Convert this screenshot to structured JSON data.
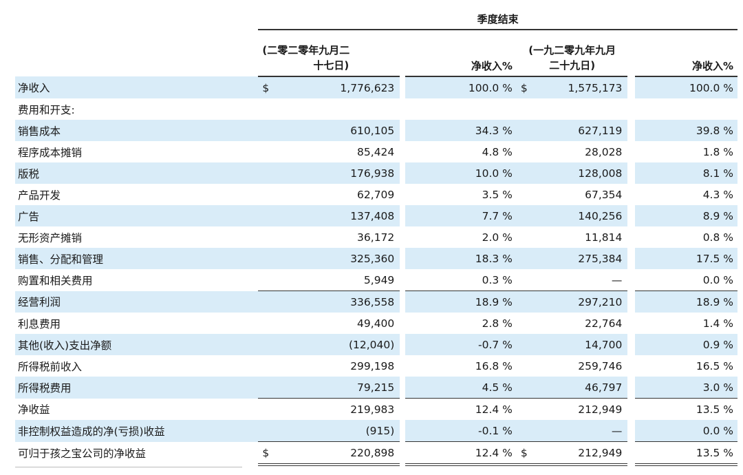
{
  "header": {
    "period_title": "季度结束",
    "col1_date_line1": "(二零二零年九月二",
    "col1_date_line2": "十七日)",
    "col1_pct": "净收入%",
    "col2_date_line1": "(一九二零九年九月",
    "col2_date_line2": "二十九日)",
    "col2_pct": "净收入%"
  },
  "rows": [
    {
      "label": "净收入",
      "cur1": "$",
      "amt1": "1,776,623",
      "pct1": "100.0 %",
      "cur2": "$",
      "amt2": "1,575,173",
      "pct2": "100.0 %"
    },
    {
      "label": "费用和开支:",
      "cur1": "",
      "amt1": "",
      "pct1": "",
      "cur2": "",
      "amt2": "",
      "pct2": ""
    },
    {
      "label": "销售成本",
      "cur1": "",
      "amt1": "610,105",
      "pct1": "34.3 %",
      "cur2": "",
      "amt2": "627,119",
      "pct2": "39.8 %"
    },
    {
      "label": "程序成本摊销",
      "cur1": "",
      "amt1": "85,424",
      "pct1": "4.8 %",
      "cur2": "",
      "amt2": "28,028",
      "pct2": "1.8 %"
    },
    {
      "label": "版税",
      "cur1": "",
      "amt1": "176,938",
      "pct1": "10.0 %",
      "cur2": "",
      "amt2": "128,008",
      "pct2": "8.1 %"
    },
    {
      "label": "产品开发",
      "cur1": "",
      "amt1": "62,709",
      "pct1": "3.5 %",
      "cur2": "",
      "amt2": "67,354",
      "pct2": "4.3 %"
    },
    {
      "label": "广告",
      "cur1": "",
      "amt1": "137,408",
      "pct1": "7.7 %",
      "cur2": "",
      "amt2": "140,256",
      "pct2": "8.9 %"
    },
    {
      "label": "无形资产摊销",
      "cur1": "",
      "amt1": "36,172",
      "pct1": "2.0 %",
      "cur2": "",
      "amt2": "11,814",
      "pct2": "0.8 %"
    },
    {
      "label": "销售、分配和管理",
      "cur1": "",
      "amt1": "325,360",
      "pct1": "18.3 %",
      "cur2": "",
      "amt2": "275,384",
      "pct2": "17.5 %"
    },
    {
      "label": "购置和相关费用",
      "cur1": "",
      "amt1": "5,949",
      "pct1": "0.3 %",
      "cur2": "",
      "amt2": "—",
      "pct2": "0.0 %"
    },
    {
      "label": "经营利润",
      "cur1": "",
      "amt1": "336,558",
      "pct1": "18.9 %",
      "cur2": "",
      "amt2": "297,210",
      "pct2": "18.9 %"
    },
    {
      "label": "利息费用",
      "cur1": "",
      "amt1": "49,400",
      "pct1": "2.8 %",
      "cur2": "",
      "amt2": "22,764",
      "pct2": "1.4 %"
    },
    {
      "label": "其他(收入)支出净额",
      "cur1": "",
      "amt1": "(12,040)",
      "pct1": "-0.7 %",
      "cur2": "",
      "amt2": "14,700",
      "pct2": "0.9 %"
    },
    {
      "label": "所得税前收入",
      "cur1": "",
      "amt1": "299,198",
      "pct1": "16.8 %",
      "cur2": "",
      "amt2": "259,746",
      "pct2": "16.5 %"
    },
    {
      "label": "所得税费用",
      "cur1": "",
      "amt1": "79,215",
      "pct1": "4.5 %",
      "cur2": "",
      "amt2": "46,797",
      "pct2": "3.0 %"
    },
    {
      "label": "净收益",
      "cur1": "",
      "amt1": "219,983",
      "pct1": "12.4 %",
      "cur2": "",
      "amt2": "212,949",
      "pct2": "13.5 %"
    },
    {
      "label": "非控制权益造成的净(亏损)收益",
      "cur1": "",
      "amt1": "(915)",
      "pct1": "-0.1 %",
      "cur2": "",
      "amt2": "—",
      "pct2": "0.0 %"
    },
    {
      "label": "可归于孩之宝公司的净收益",
      "cur1": "$",
      "amt1": "220,898",
      "pct1": "12.4 %",
      "cur2": "$",
      "amt2": "212,949",
      "pct2": "13.5 %"
    }
  ],
  "colors": {
    "row_shade": "#d9ecf8",
    "rule": "#333333"
  }
}
